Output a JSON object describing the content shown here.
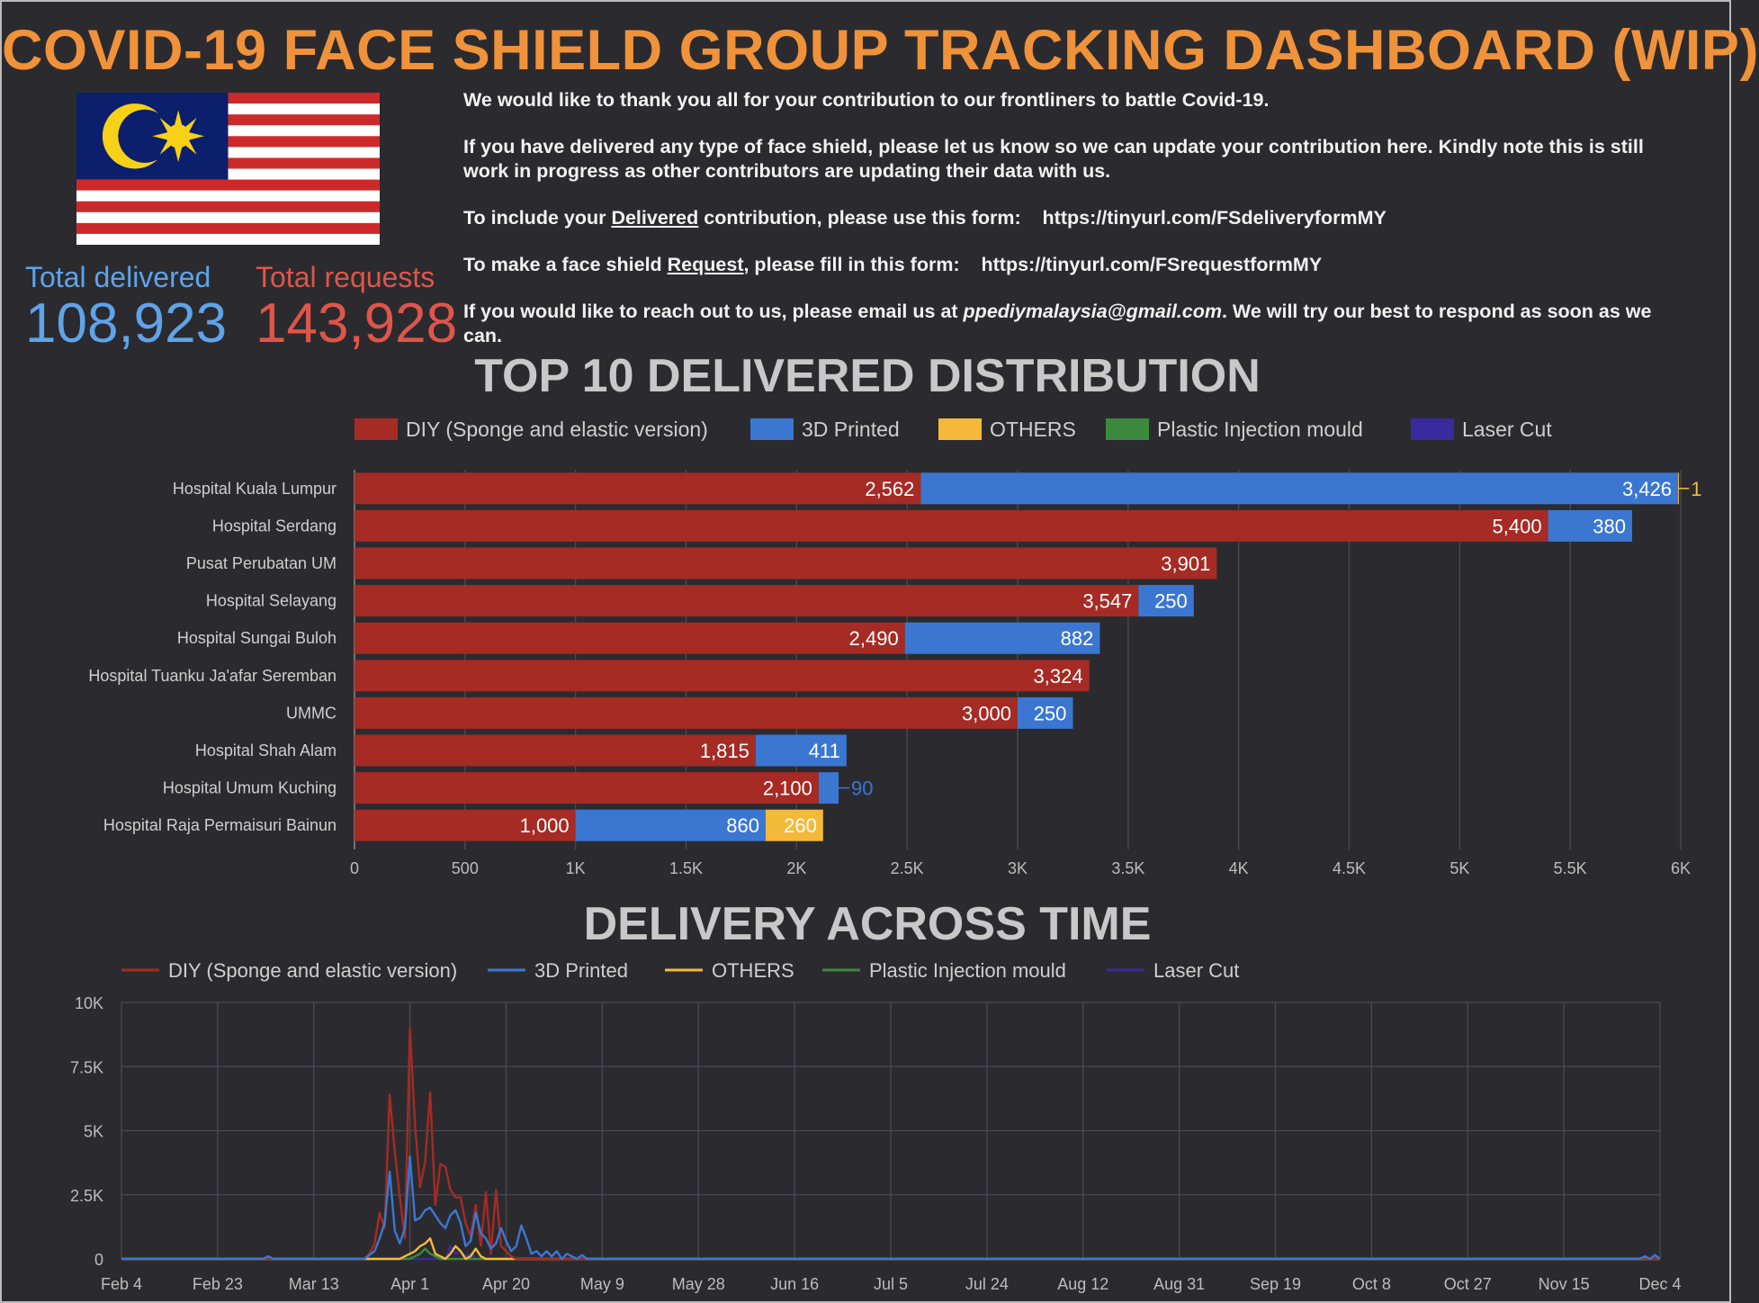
{
  "header": {
    "title": "COVID-19 FACE SHIELD GROUP TRACKING DASHBOARD (WIP)"
  },
  "kpis": {
    "delivered_label": "Total delivered",
    "delivered_value": "108,923",
    "requests_label": "Total requests",
    "requests_value": "143,928"
  },
  "notes": {
    "line1": "We would like to thank you all for your contribution to our frontliners to battle Covid-19.",
    "line2": "If you have delivered any type of face shield, please let us know so we can update your contribution here. Kindly note this is still work in progress as other contributors are updating their data with us.",
    "line3_pre": "To include your ",
    "line3_link_word": "Delivered",
    "line3_post": " contribution, please use this form:",
    "line3_url": "https://tinyurl.com/FSdeliveryformMY",
    "line4_pre": "To make a face shield ",
    "line4_link_word": "Request",
    "line4_post": ", please fill in this form:",
    "line4_url": "https://tinyurl.com/FSrequestformMY",
    "line5_pre": "If you would like to reach out to us, please email us at ",
    "line5_email": "ppediymalaysia@gmail.com",
    "line5_post": ". We will try our best to respond as soon as we can."
  },
  "colors": {
    "diy": "#a52b24",
    "printed": "#3b77d1",
    "others": "#f5b93a",
    "injection": "#3b8a3e",
    "laser": "#3a2a9f",
    "title": "#f0923a",
    "delivered": "#5fa3ea",
    "requests": "#e05549"
  },
  "chart_data": [
    {
      "type": "bar",
      "orientation": "horizontal",
      "stacked": true,
      "title": "TOP 10 DELIVERED DISTRIBUTION",
      "legend": [
        "DIY (Sponge and elastic version)",
        "3D Printed",
        "OTHERS",
        "Plastic Injection mould",
        "Laser Cut"
      ],
      "legend_position": "top",
      "categories": [
        "Hospital Kuala Lumpur",
        "Hospital Serdang",
        "Pusat Perubatan UM",
        "Hospital Selayang",
        "Hospital Sungai Buloh",
        "Hospital Tuanku Ja'afar Seremban",
        "UMMC",
        "Hospital Shah Alam",
        "Hospital Umum Kuching",
        "Hospital Raja Permaisuri Bainun"
      ],
      "series": [
        {
          "name": "DIY (Sponge and elastic version)",
          "values": [
            2562,
            5400,
            3901,
            3547,
            2490,
            3324,
            3000,
            1815,
            2100,
            1000
          ]
        },
        {
          "name": "3D Printed",
          "values": [
            3426,
            380,
            0,
            250,
            882,
            0,
            250,
            411,
            90,
            860
          ]
        },
        {
          "name": "OTHERS",
          "values": [
            1,
            0,
            0,
            0,
            0,
            0,
            0,
            0,
            0,
            260
          ]
        },
        {
          "name": "Plastic Injection mould",
          "values": [
            0,
            0,
            0,
            0,
            0,
            0,
            0,
            0,
            0,
            0
          ]
        },
        {
          "name": "Laser Cut",
          "values": [
            0,
            0,
            0,
            0,
            0,
            0,
            0,
            0,
            0,
            0
          ]
        }
      ],
      "data_labels": [
        [
          "2,562",
          "3,426",
          "1"
        ],
        [
          "5,400",
          "380"
        ],
        [
          "3,901"
        ],
        [
          "3,547",
          "250"
        ],
        [
          "2,490",
          "882"
        ],
        [
          "3,324"
        ],
        [
          "3,000",
          "250"
        ],
        [
          "1,815",
          "411"
        ],
        [
          "2,100",
          "90"
        ],
        [
          "1,000",
          "860",
          "260"
        ]
      ],
      "xlim": [
        0,
        6000
      ],
      "xticks": [
        0,
        500,
        1000,
        1500,
        2000,
        2500,
        3000,
        3500,
        4000,
        4500,
        5000,
        5500,
        6000
      ],
      "xtick_labels": [
        "0",
        "500",
        "1K",
        "1.5K",
        "2K",
        "2.5K",
        "3K",
        "3.5K",
        "4K",
        "4.5K",
        "5K",
        "5.5K",
        "6K"
      ],
      "grid": true
    },
    {
      "type": "line",
      "title": "DELIVERY ACROSS TIME",
      "legend": [
        "DIY (Sponge and elastic version)",
        "3D Printed",
        "OTHERS",
        "Plastic Injection mould",
        "Laser Cut"
      ],
      "legend_position": "top",
      "x_unit": "days since Feb 4",
      "xlim": [
        0,
        304
      ],
      "ylim": [
        0,
        10000
      ],
      "yticks": [
        0,
        2500,
        5000,
        7500,
        10000
      ],
      "ytick_labels": [
        "0",
        "2.5K",
        "5K",
        "7.5K",
        "10K"
      ],
      "xticks": [
        0,
        19,
        38,
        57,
        76,
        95,
        114,
        133,
        152,
        171,
        190,
        209,
        228,
        247,
        266,
        285,
        304
      ],
      "xtick_labels": [
        "Feb 4",
        "Feb 23",
        "Mar 13",
        "Apr 1",
        "Apr 20",
        "May 9",
        "May 28",
        "Jun 16",
        "Jul 5",
        "Jul 24",
        "Aug 12",
        "Aug 31",
        "Sep 19",
        "Oct 8",
        "Oct 27",
        "Nov 15",
        "Dec 4"
      ],
      "grid": true,
      "series": [
        {
          "name": "DIY (Sponge and elastic version)",
          "x": [
            0,
            48,
            49,
            50,
            51,
            52,
            53,
            54,
            55,
            56,
            57,
            58,
            59,
            60,
            61,
            62,
            63,
            64,
            65,
            66,
            67,
            68,
            69,
            70,
            71,
            72,
            73,
            74,
            75,
            76,
            77,
            78,
            80,
            304
          ],
          "y": [
            0,
            0,
            200,
            600,
            1800,
            1200,
            6400,
            4200,
            2400,
            800,
            9000,
            5200,
            2800,
            3800,
            6500,
            2100,
            3700,
            3600,
            2700,
            2400,
            2400,
            1400,
            900,
            2100,
            500,
            2600,
            200,
            2700,
            500,
            300,
            100,
            0,
            0,
            0
          ]
        },
        {
          "name": "3D Printed",
          "x": [
            0,
            28,
            29,
            30,
            48,
            49,
            50,
            51,
            52,
            53,
            54,
            55,
            56,
            57,
            58,
            59,
            60,
            61,
            62,
            63,
            64,
            65,
            66,
            67,
            68,
            69,
            70,
            71,
            72,
            73,
            74,
            75,
            76,
            77,
            78,
            79,
            80,
            81,
            82,
            83,
            84,
            85,
            86,
            87,
            88,
            90,
            91,
            92,
            93,
            300,
            301,
            302,
            303,
            304
          ],
          "y": [
            0,
            0,
            100,
            0,
            0,
            150,
            300,
            800,
            1400,
            3400,
            1100,
            600,
            1200,
            4000,
            1500,
            1600,
            1900,
            2000,
            1700,
            1400,
            1200,
            1700,
            1900,
            1400,
            500,
            700,
            1800,
            1000,
            800,
            400,
            600,
            1200,
            700,
            300,
            500,
            1300,
            800,
            200,
            300,
            100,
            300,
            100,
            300,
            0,
            200,
            0,
            150,
            0,
            0,
            0,
            100,
            0,
            150,
            0
          ]
        },
        {
          "name": "OTHERS",
          "x": [
            0,
            55,
            56,
            57,
            58,
            59,
            60,
            61,
            62,
            63,
            64,
            65,
            66,
            67,
            68,
            69,
            70,
            71,
            72,
            304
          ],
          "y": [
            0,
            0,
            100,
            200,
            300,
            500,
            600,
            800,
            200,
            100,
            0,
            200,
            500,
            300,
            0,
            100,
            400,
            100,
            0,
            0
          ]
        },
        {
          "name": "Plastic Injection mould",
          "x": [
            0,
            57,
            58,
            59,
            60,
            61,
            62,
            63,
            304
          ],
          "y": [
            0,
            0,
            100,
            200,
            400,
            200,
            100,
            0,
            0
          ]
        },
        {
          "name": "Laser Cut",
          "x": [
            0,
            64,
            65,
            66,
            67,
            68,
            69,
            70,
            71,
            304
          ],
          "y": [
            0,
            0,
            500,
            200,
            300,
            100,
            200,
            0,
            0,
            0
          ]
        }
      ]
    }
  ]
}
